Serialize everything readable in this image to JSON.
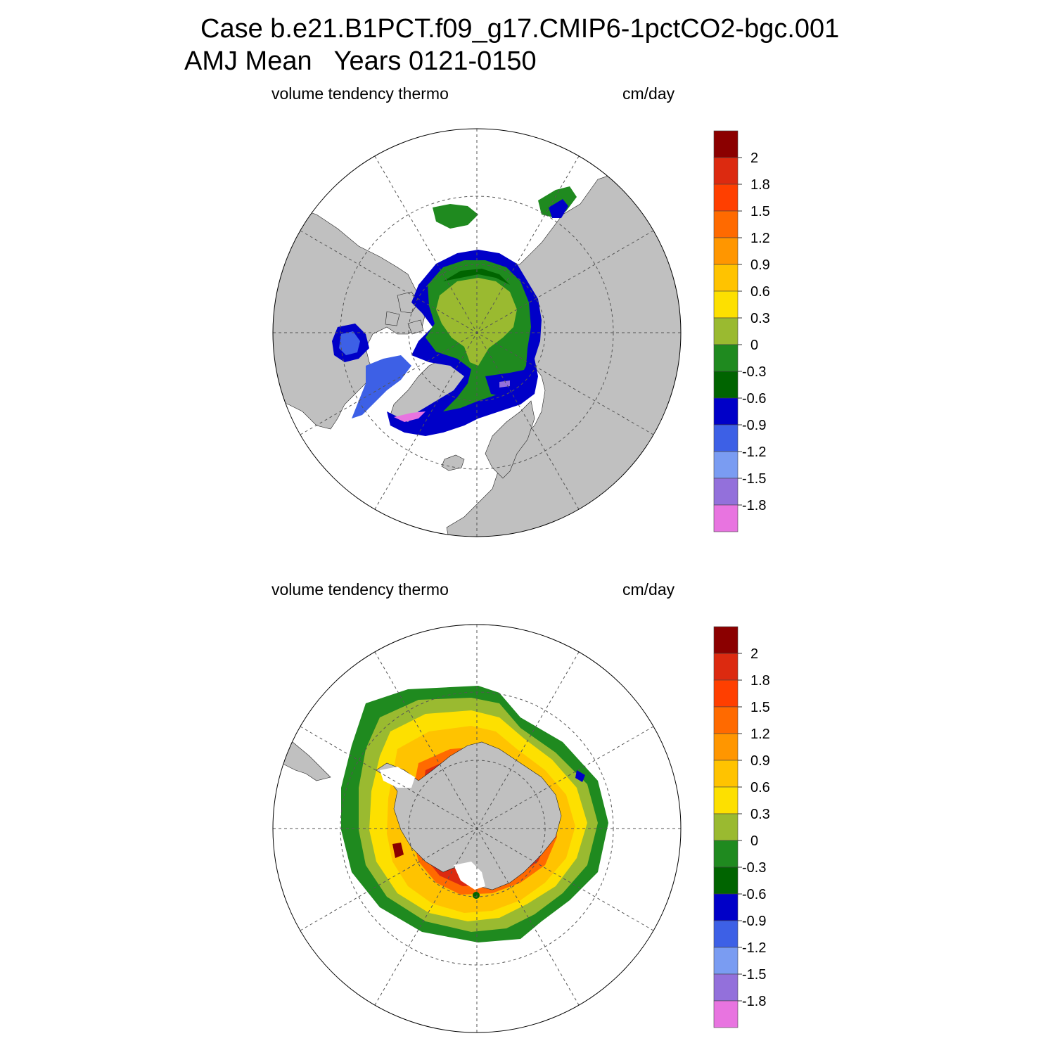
{
  "header": {
    "line1": "Case b.e21.B1PCT.f09_g17.CMIP6-1pctCO2-bgc.001",
    "line2_season": "AMJ Mean",
    "line2_years": "Years 0121-0150"
  },
  "panels": [
    {
      "hemisphere": "north",
      "left_label": "volume tendency thermo",
      "units": "cm/day"
    },
    {
      "hemisphere": "south",
      "left_label": "volume tendency thermo",
      "units": "cm/day"
    }
  ],
  "colorbar": {
    "colors": [
      "#8b0000",
      "#dc2a10",
      "#ff3f00",
      "#ff6a00",
      "#ff9600",
      "#ffc300",
      "#fde000",
      "#9aba30",
      "#1f8a1f",
      "#006400",
      "#0000c8",
      "#3d60e6",
      "#7a9cf2",
      "#9370db",
      "#e874e0"
    ],
    "labels": [
      "2",
      "1.8",
      "1.5",
      "1.2",
      "0.9",
      "0.6",
      "0.3",
      "0",
      "-0.3",
      "-0.6",
      "-0.9",
      "-1.2",
      "-1.5",
      "-1.8"
    ]
  },
  "map_colors": {
    "land": "#c0c0c0",
    "ocean_no_ice": "#ffffff",
    "grid_line": "#555555"
  }
}
